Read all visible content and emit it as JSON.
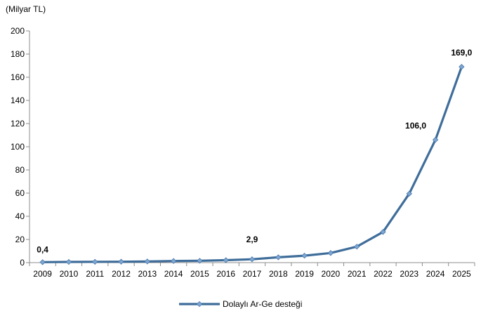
{
  "chart_data": {
    "type": "line",
    "unit_label": "(Milyar TL)",
    "ylim": [
      0,
      200
    ],
    "yticks": [
      0,
      20,
      40,
      60,
      80,
      100,
      120,
      140,
      160,
      180,
      200
    ],
    "x": [
      "2009",
      "2010",
      "2011",
      "2012",
      "2013",
      "2014",
      "2015",
      "2016",
      "2017",
      "2018",
      "2019",
      "2020",
      "2021",
      "2022",
      "2023",
      "2024",
      "2025"
    ],
    "series": [
      {
        "name": "Dolaylı Ar-Ge desteği",
        "color": "#3f6d9a",
        "values": [
          0.4,
          0.6,
          0.7,
          0.8,
          1.0,
          1.4,
          1.6,
          2.1,
          2.9,
          4.6,
          6.0,
          8.3,
          13.8,
          26.5,
          59.5,
          106.0,
          169.0
        ]
      }
    ],
    "data_labels": [
      {
        "index": 0,
        "text": "0,4"
      },
      {
        "index": 8,
        "text": "2,9"
      },
      {
        "index": 15,
        "text": "106,0"
      },
      {
        "index": 16,
        "text": "169,0"
      }
    ],
    "legend_position": "bottom",
    "grid": false
  }
}
